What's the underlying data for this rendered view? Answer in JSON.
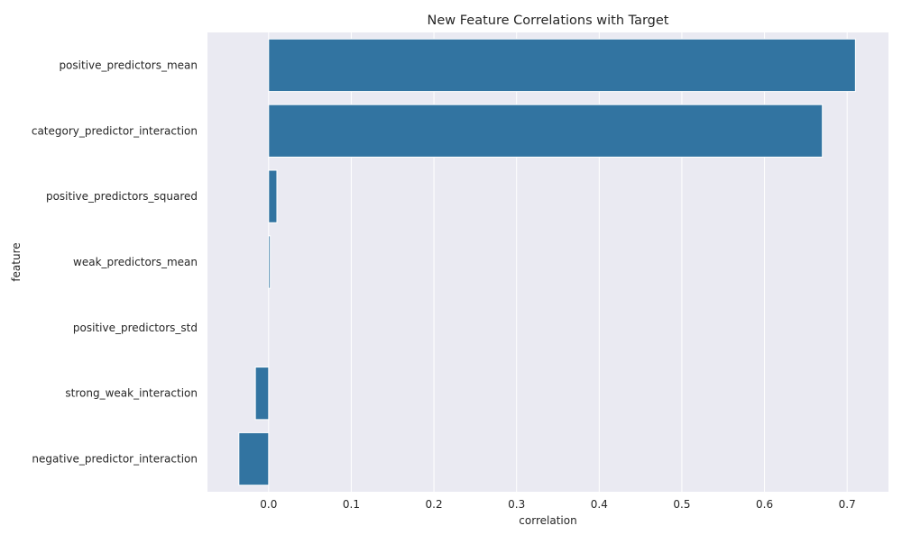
{
  "chart_data": {
    "type": "bar",
    "orientation": "horizontal",
    "title": "New Feature Correlations with Target",
    "xlabel": "correlation",
    "ylabel": "feature",
    "categories": [
      "positive_predictors_mean",
      "category_predictor_interaction",
      "positive_predictors_squared",
      "weak_predictors_mean",
      "positive_predictors_std",
      "strong_weak_interaction",
      "negative_predictor_interaction"
    ],
    "values": [
      0.71,
      0.67,
      0.01,
      0.002,
      0.0,
      -0.016,
      -0.036
    ],
    "xlim": [
      -0.074,
      0.75
    ],
    "xticks": [
      "0.0",
      "0.1",
      "0.2",
      "0.3",
      "0.4",
      "0.5",
      "0.6",
      "0.7"
    ],
    "grid": true,
    "colors": {
      "bar": "#3274a1",
      "plot_background": "#eaeaf2",
      "grid": "#ffffff"
    }
  }
}
